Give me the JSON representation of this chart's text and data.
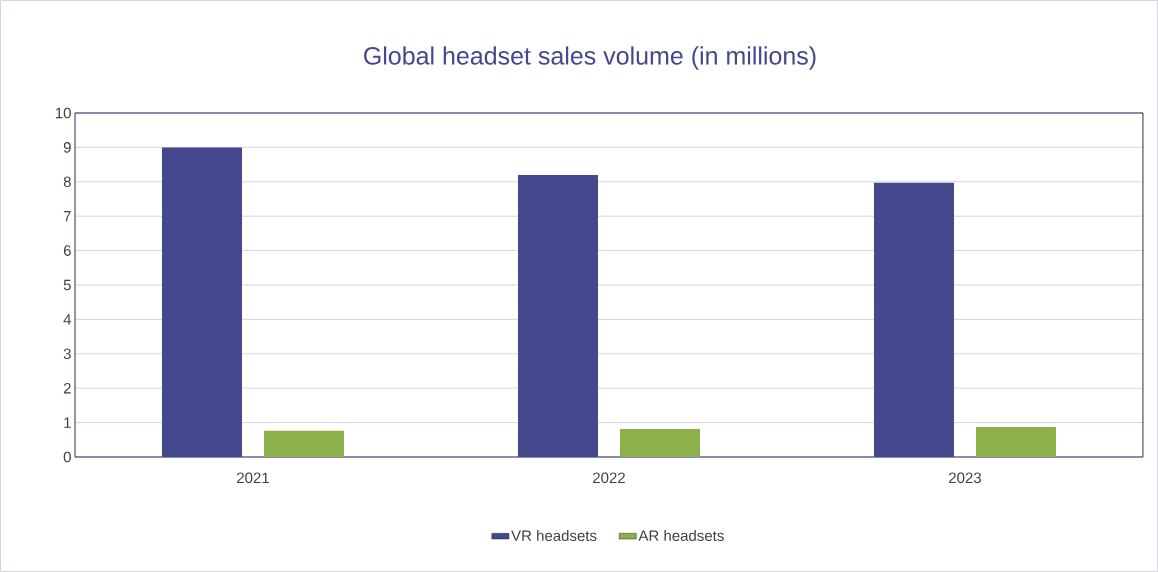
{
  "chart_data": {
    "type": "bar",
    "title": "Global headset sales volume (in millions)",
    "categories": [
      "2021",
      "2022",
      "2023"
    ],
    "series": [
      {
        "name": "VR headsets",
        "color": "#44488c",
        "values": [
          9.0,
          8.2,
          7.97
        ]
      },
      {
        "name": "AR headsets",
        "color": "#8db04a",
        "values": [
          0.76,
          0.81,
          0.87
        ]
      }
    ],
    "ylim": [
      0,
      10
    ],
    "yticks": [
      0,
      1,
      2,
      3,
      4,
      5,
      6,
      7,
      8,
      9,
      10
    ],
    "grid": "y",
    "legend": "bottom"
  }
}
